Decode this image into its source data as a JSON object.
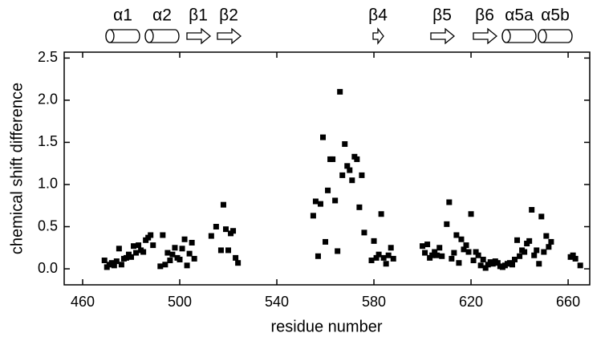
{
  "chart_data": {
    "type": "scatter",
    "xlabel": "residue number",
    "ylabel": "chemical shift difference",
    "annotations": [
      "α1",
      "α2",
      "β1",
      "β2",
      "β4",
      "β5",
      "β6",
      "α5a",
      "α5b"
    ],
    "color": "#000000",
    "xlim": [
      452.4,
      668.9
    ],
    "xticks": [
      460,
      500,
      540,
      580,
      620,
      660
    ],
    "ylim": [
      -0.19,
      2.57
    ],
    "yticks": [
      {
        "value": 0,
        "label": "0.0"
      },
      0.5,
      {
        "value": 1,
        "label": "1.0"
      },
      1.5,
      {
        "value": 2,
        "label": "2.0"
      },
      2.5
    ],
    "x": [
      469,
      470,
      471,
      472,
      473,
      474,
      475,
      476,
      477,
      478,
      479,
      480,
      481,
      482,
      483,
      484,
      485,
      486,
      487,
      488,
      489,
      492,
      493,
      494,
      495,
      496,
      497,
      498,
      499,
      500,
      501,
      502,
      503,
      504,
      505,
      506,
      513,
      515,
      517,
      518,
      519,
      520,
      521,
      522,
      523,
      524,
      555,
      556,
      557,
      558,
      559,
      560,
      561,
      562,
      563,
      564,
      565,
      566,
      567,
      568,
      569,
      570,
      571,
      572,
      573,
      574,
      575,
      576,
      579,
      580,
      581,
      582,
      583,
      584,
      585,
      586,
      587,
      588,
      600,
      601,
      602,
      603,
      604,
      605,
      606,
      607,
      608,
      610,
      611,
      612,
      613,
      614,
      615,
      616,
      617,
      618,
      619,
      620,
      621,
      622,
      623,
      624,
      625,
      626,
      627,
      628,
      629,
      630,
      631,
      632,
      633,
      634,
      635,
      636,
      637,
      638,
      639,
      640,
      641,
      642,
      643,
      644,
      645,
      646,
      647,
      648,
      649,
      650,
      651,
      652,
      653,
      661,
      662,
      663,
      665
    ],
    "values": [
      0.1,
      0.02,
      0.05,
      0.07,
      0.04,
      0.09,
      0.24,
      0.05,
      0.12,
      0.13,
      0.17,
      0.14,
      0.27,
      0.19,
      0.28,
      0.22,
      0.2,
      0.34,
      0.37,
      0.4,
      0.28,
      0.03,
      0.4,
      0.05,
      0.19,
      0.1,
      0.17,
      0.25,
      0.13,
      0.11,
      0.24,
      0.35,
      0.04,
      0.18,
      0.31,
      0.12,
      0.39,
      0.5,
      0.22,
      0.76,
      0.47,
      0.22,
      0.42,
      0.45,
      0.13,
      0.07,
      0.63,
      0.8,
      0.15,
      0.77,
      1.56,
      0.32,
      0.93,
      1.3,
      1.3,
      0.81,
      0.21,
      2.1,
      1.11,
      1.48,
      1.22,
      1.17,
      1.05,
      1.33,
      1.3,
      0.73,
      1.11,
      0.43,
      0.1,
      0.33,
      0.13,
      0.17,
      0.65,
      0.13,
      0.06,
      0.16,
      0.25,
      0.12,
      0.27,
      0.19,
      0.29,
      0.13,
      0.16,
      0.2,
      0.16,
      0.25,
      0.15,
      0.53,
      0.79,
      0.12,
      0.19,
      0.4,
      0.07,
      0.35,
      0.23,
      0.28,
      0.2,
      0.65,
      0.1,
      0.2,
      0.16,
      0.04,
      0.11,
      0.01,
      0.05,
      0.08,
      0.06,
      0.09,
      0.07,
      0.03,
      0.02,
      0.04,
      0.06,
      0.07,
      0.05,
      0.11,
      0.34,
      0.15,
      0.22,
      0.2,
      0.3,
      0.33,
      0.7,
      0.16,
      0.22,
      0.06,
      0.62,
      0.2,
      0.39,
      0.26,
      0.32,
      0.14,
      0.16,
      0.12,
      0.04
    ]
  }
}
